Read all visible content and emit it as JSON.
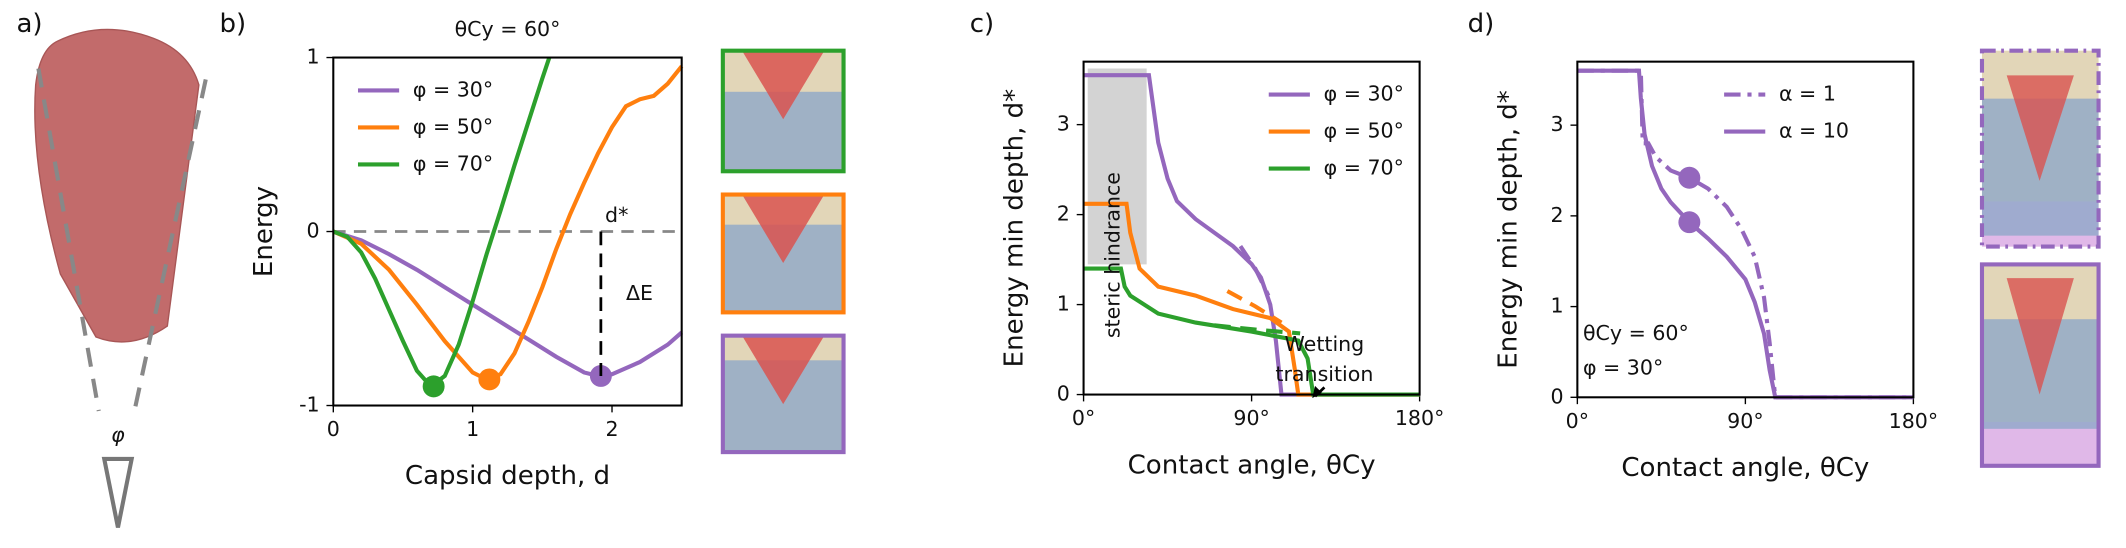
{
  "chart_data": [
    {
      "type": "line",
      "title": "θCy = 60°",
      "xlabel": "Capsid depth, d",
      "ylabel": "Energy",
      "xlim": [
        0,
        2.5
      ],
      "ylim": [
        -1,
        1
      ],
      "xticks": [
        0,
        1,
        2
      ],
      "yticks": [
        -1,
        0,
        1
      ],
      "legend": "upper left",
      "zero_line": true,
      "series": [
        {
          "name": "φ = 30°",
          "color": "#9467bd",
          "linestyle": "solid",
          "x": [
            0,
            0.2,
            0.4,
            0.6,
            0.8,
            1.0,
            1.2,
            1.4,
            1.6,
            1.8,
            1.9,
            2.0,
            2.2,
            2.4,
            2.5
          ],
          "values": [
            0,
            -0.05,
            -0.13,
            -0.22,
            -0.32,
            -0.42,
            -0.52,
            -0.62,
            -0.72,
            -0.81,
            -0.83,
            -0.82,
            -0.75,
            -0.65,
            -0.58
          ]
        },
        {
          "name": "φ = 50°",
          "color": "#ff7f0e",
          "linestyle": "solid",
          "x": [
            0,
            0.2,
            0.4,
            0.6,
            0.8,
            1.0,
            1.1,
            1.2,
            1.3,
            1.4,
            1.5,
            1.6,
            1.7,
            1.8,
            1.9,
            2.0,
            2.1,
            2.2,
            2.3,
            2.4,
            2.5
          ],
          "values": [
            0,
            -0.07,
            -0.22,
            -0.42,
            -0.63,
            -0.81,
            -0.85,
            -0.82,
            -0.7,
            -0.52,
            -0.32,
            -0.1,
            0.1,
            0.28,
            0.45,
            0.6,
            0.72,
            0.76,
            0.78,
            0.85,
            0.95
          ]
        },
        {
          "name": "φ = 70°",
          "color": "#2ca02c",
          "linestyle": "solid",
          "x": [
            0,
            0.1,
            0.2,
            0.3,
            0.4,
            0.5,
            0.6,
            0.7,
            0.8,
            0.9,
            1.0,
            1.1,
            1.2,
            1.3,
            1.4,
            1.5,
            1.55
          ],
          "values": [
            0,
            -0.03,
            -0.12,
            -0.27,
            -0.45,
            -0.63,
            -0.8,
            -0.89,
            -0.83,
            -0.65,
            -0.4,
            -0.13,
            0.12,
            0.38,
            0.63,
            0.88,
            1.0
          ]
        }
      ],
      "markers": {
        "x": [
          1.92,
          1.12,
          0.72
        ],
        "y": [
          -0.83,
          -0.85,
          -0.89
        ],
        "colors": [
          "#9467bd",
          "#ff7f0e",
          "#2ca02c"
        ]
      },
      "annotations": [
        "d*",
        "ΔE"
      ]
    },
    {
      "type": "line",
      "xlabel": "Contact angle, θCy",
      "ylabel": "Energy min depth, d*",
      "xlim": [
        0,
        180
      ],
      "ylim": [
        0,
        3.7
      ],
      "xticks": [
        {
          "value": 0,
          "label": "0°"
        },
        {
          "value": 90,
          "label": "90°"
        },
        {
          "value": 180,
          "label": "180°"
        }
      ],
      "yticks": [
        0,
        1,
        2,
        3
      ],
      "legend": "upper right",
      "series": [
        {
          "name": "φ = 30°",
          "color": "#9467bd",
          "linestyle": "solid",
          "x": [
            0,
            35,
            36,
            40,
            45,
            50,
            60,
            70,
            80,
            90,
            95,
            100,
            103,
            105,
            106,
            180
          ],
          "values": [
            3.55,
            3.55,
            3.4,
            2.8,
            2.4,
            2.15,
            1.95,
            1.8,
            1.65,
            1.45,
            1.3,
            1.0,
            0.6,
            0.2,
            0,
            0
          ],
          "dashed_x": [
            84,
            92,
            99
          ],
          "dashed_values": [
            1.65,
            1.4,
            1.1
          ]
        },
        {
          "name": "φ = 50°",
          "color": "#ff7f0e",
          "linestyle": "solid",
          "x": [
            0,
            23,
            25,
            30,
            40,
            60,
            80,
            100,
            110,
            113,
            115,
            180
          ],
          "values": [
            2.12,
            2.12,
            1.8,
            1.4,
            1.2,
            1.1,
            0.95,
            0.85,
            0.7,
            0.3,
            0,
            0
          ],
          "dashed_x": [
            77,
            92,
            106
          ],
          "dashed_values": [
            1.15,
            0.98,
            0.8
          ]
        },
        {
          "name": "φ = 70°",
          "color": "#2ca02c",
          "linestyle": "solid",
          "x": [
            0,
            20,
            22,
            25,
            40,
            60,
            90,
            115,
            120,
            123,
            180
          ],
          "values": [
            1.4,
            1.4,
            1.2,
            1.1,
            0.9,
            0.8,
            0.7,
            0.6,
            0.4,
            0,
            0
          ],
          "dashed_x": [
            70,
            93,
            116
          ],
          "dashed_values": [
            0.77,
            0.72,
            0.68
          ]
        }
      ],
      "annotations": [
        "steric hindrance",
        "Wetting",
        "transition"
      ]
    },
    {
      "type": "line",
      "xlabel": "Contact angle, θCy",
      "ylabel": "Energy min depth, d*",
      "xlim": [
        0,
        180
      ],
      "ylim": [
        0,
        3.7
      ],
      "xticks": [
        {
          "value": 0,
          "label": "0°"
        },
        {
          "value": 90,
          "label": "90°"
        },
        {
          "value": 180,
          "label": "180°"
        }
      ],
      "yticks": [
        0,
        1,
        2,
        3
      ],
      "legend": "upper right",
      "series": [
        {
          "name": "α = 1",
          "color": "#9467bd",
          "linestyle": "dashdot",
          "x": [
            0,
            34,
            35,
            38,
            42,
            50,
            60,
            70,
            80,
            88,
            95,
            100,
            103,
            105,
            106,
            180
          ],
          "values": [
            3.6,
            3.6,
            2.8,
            2.8,
            2.65,
            2.5,
            2.42,
            2.3,
            2.1,
            1.85,
            1.55,
            1.1,
            0.6,
            0.2,
            0,
            0
          ]
        },
        {
          "name": "α = 10",
          "color": "#9467bd",
          "linestyle": "solid",
          "x": [
            0,
            33,
            34,
            36,
            40,
            45,
            50,
            60,
            70,
            80,
            90,
            95,
            100,
            103,
            105,
            106,
            180
          ],
          "values": [
            3.6,
            3.6,
            3.3,
            2.9,
            2.55,
            2.3,
            2.15,
            1.93,
            1.75,
            1.55,
            1.3,
            1.05,
            0.7,
            0.3,
            0.1,
            0,
            0
          ]
        }
      ],
      "markers": {
        "x": [
          60,
          60
        ],
        "y": [
          2.42,
          1.93
        ],
        "colors": [
          "#9467bd",
          "#9467bd"
        ]
      },
      "annotations": [
        "θCy = 60°",
        "φ = 30°"
      ]
    }
  ],
  "panel_labels": [
    "a)",
    "b)",
    "c)",
    "d)"
  ],
  "cone_label": "φ"
}
